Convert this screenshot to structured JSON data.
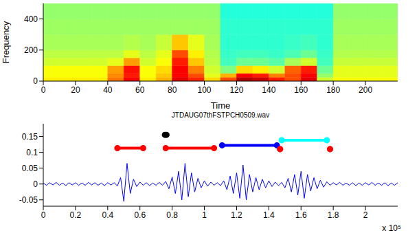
{
  "chart_data": [
    {
      "type": "heatmap",
      "xlabel": "Time",
      "ylabel": "Frequency",
      "xlim": [
        0,
        220
      ],
      "xticks": [
        0,
        20,
        40,
        60,
        80,
        100,
        120,
        140,
        160,
        180,
        200
      ],
      "ylim": [
        0,
        500
      ],
      "yticks": [
        0,
        200,
        400
      ],
      "x_edges": [
        0,
        10,
        20,
        30,
        40,
        50,
        60,
        70,
        80,
        90,
        100,
        110,
        120,
        130,
        140,
        150,
        160,
        170,
        180,
        190,
        200,
        210,
        220
      ],
      "y_edges": [
        0,
        25,
        50,
        100,
        150,
        200,
        300,
        400,
        500
      ],
      "clim": [
        0,
        1
      ],
      "cells": [
        [
          0.64,
          0.64,
          0.64,
          0.64,
          0.76,
          0.88,
          0.64,
          0.7,
          0.9,
          0.84,
          0.66,
          0.8,
          0.95,
          0.93,
          0.85,
          0.8,
          0.9,
          0.58,
          0.62,
          0.62,
          0.62,
          0.62
        ],
        [
          0.62,
          0.62,
          0.62,
          0.62,
          0.74,
          0.85,
          0.62,
          0.68,
          0.88,
          0.8,
          0.6,
          0.7,
          0.88,
          0.85,
          0.75,
          0.8,
          0.88,
          0.52,
          0.6,
          0.6,
          0.6,
          0.6
        ],
        [
          0.62,
          0.62,
          0.62,
          0.62,
          0.72,
          0.86,
          0.62,
          0.66,
          0.88,
          0.75,
          0.58,
          0.5,
          0.66,
          0.64,
          0.58,
          0.78,
          0.85,
          0.48,
          0.6,
          0.6,
          0.6,
          0.6
        ],
        [
          0.58,
          0.58,
          0.58,
          0.58,
          0.6,
          0.72,
          0.58,
          0.62,
          0.85,
          0.68,
          0.56,
          0.44,
          0.48,
          0.48,
          0.46,
          0.54,
          0.58,
          0.44,
          0.57,
          0.57,
          0.57,
          0.57
        ],
        [
          0.56,
          0.56,
          0.56,
          0.56,
          0.56,
          0.6,
          0.56,
          0.6,
          0.8,
          0.64,
          0.55,
          0.43,
          0.44,
          0.44,
          0.43,
          0.45,
          0.48,
          0.43,
          0.55,
          0.55,
          0.55,
          0.55
        ],
        [
          0.54,
          0.54,
          0.54,
          0.54,
          0.54,
          0.55,
          0.54,
          0.57,
          0.68,
          0.6,
          0.54,
          0.42,
          0.42,
          0.42,
          0.42,
          0.43,
          0.44,
          0.42,
          0.54,
          0.54,
          0.54,
          0.54
        ],
        [
          0.53,
          0.53,
          0.53,
          0.53,
          0.53,
          0.53,
          0.53,
          0.53,
          0.53,
          0.53,
          0.53,
          0.42,
          0.42,
          0.42,
          0.42,
          0.42,
          0.42,
          0.42,
          0.53,
          0.53,
          0.53,
          0.53
        ],
        [
          0.52,
          0.52,
          0.52,
          0.52,
          0.52,
          0.52,
          0.52,
          0.52,
          0.52,
          0.52,
          0.52,
          0.41,
          0.41,
          0.41,
          0.41,
          0.41,
          0.41,
          0.41,
          0.52,
          0.52,
          0.52,
          0.52
        ]
      ]
    },
    {
      "type": "line",
      "title": "JTDAUG07thFSTPCH0509.wav",
      "annotation": "x 10⁵",
      "color": "#0000ff",
      "xlim": [
        0,
        2.2
      ],
      "xticks": [
        0,
        0.2,
        0.4,
        0.6,
        0.8,
        1,
        1.2,
        1.4,
        1.6,
        1.8,
        2
      ],
      "ylim": [
        -0.07,
        0.19
      ],
      "yticks": [
        -0.05,
        0,
        0.05,
        0.1,
        0.15
      ],
      "x": [
        0,
        0.02,
        0.04,
        0.06,
        0.08,
        0.1,
        0.12,
        0.14,
        0.16,
        0.18,
        0.2,
        0.22,
        0.24,
        0.26,
        0.28,
        0.3,
        0.32,
        0.34,
        0.36,
        0.38,
        0.4,
        0.42,
        0.44,
        0.46,
        0.48,
        0.5,
        0.52,
        0.54,
        0.56,
        0.58,
        0.6,
        0.62,
        0.64,
        0.66,
        0.68,
        0.7,
        0.72,
        0.74,
        0.76,
        0.78,
        0.8,
        0.82,
        0.84,
        0.86,
        0.88,
        0.9,
        0.92,
        0.94,
        0.96,
        0.98,
        1,
        1.02,
        1.04,
        1.06,
        1.08,
        1.1,
        1.12,
        1.14,
        1.16,
        1.18,
        1.2,
        1.22,
        1.24,
        1.26,
        1.28,
        1.3,
        1.32,
        1.34,
        1.36,
        1.38,
        1.4,
        1.42,
        1.44,
        1.46,
        1.48,
        1.5,
        1.52,
        1.54,
        1.56,
        1.58,
        1.6,
        1.62,
        1.64,
        1.66,
        1.68,
        1.7,
        1.72,
        1.74,
        1.76,
        1.78,
        1.8,
        1.82,
        1.84,
        1.86,
        1.88,
        1.9,
        1.92,
        1.94,
        1.96,
        1.98,
        2,
        2.02,
        2.04,
        2.06,
        2.08,
        2.1,
        2.12,
        2.14,
        2.16,
        2.18,
        2.2
      ],
      "values": [
        0.003,
        -0.004,
        0.004,
        -0.003,
        0.005,
        -0.004,
        0.003,
        -0.005,
        0.004,
        -0.003,
        0.004,
        -0.004,
        0.003,
        -0.004,
        0.005,
        -0.003,
        0.004,
        -0.004,
        0.003,
        -0.005,
        0.004,
        -0.003,
        0.004,
        -0.006,
        0.02,
        -0.055,
        0.065,
        -0.03,
        0.015,
        -0.008,
        0.006,
        -0.004,
        0.004,
        -0.005,
        0.003,
        -0.004,
        0.005,
        -0.004,
        0.008,
        -0.015,
        0.022,
        -0.03,
        0.04,
        -0.05,
        0.065,
        -0.04,
        0.035,
        -0.025,
        0.018,
        -0.012,
        0.01,
        -0.007,
        0.006,
        -0.004,
        0.004,
        -0.005,
        0.01,
        -0.018,
        0.025,
        -0.03,
        0.035,
        -0.045,
        0.06,
        -0.05,
        0.03,
        -0.025,
        0.02,
        -0.018,
        0.015,
        -0.012,
        0.01,
        -0.008,
        0.006,
        -0.005,
        0.005,
        -0.012,
        0.018,
        -0.025,
        0.03,
        -0.035,
        0.04,
        -0.045,
        0.03,
        -0.022,
        0.02,
        -0.015,
        0.012,
        -0.01,
        0.007,
        -0.004,
        0.004,
        -0.003,
        0.005,
        -0.004,
        0.003,
        -0.004,
        0.004,
        -0.005,
        0.003,
        -0.004,
        0.004,
        -0.003,
        0.005,
        -0.004,
        0.003,
        -0.004,
        0.004,
        -0.005,
        0.003,
        -0.004,
        0.004
      ],
      "segments": [
        {
          "color": "#ff0000",
          "x": [
            0.46,
            0.62
          ],
          "y": 0.113
        },
        {
          "color": "#000000",
          "x": [
            0.755,
            0.765
          ],
          "y": 0.155
        },
        {
          "color": "#ff0000",
          "x": [
            0.76,
            1.06
          ],
          "y": 0.113
        },
        {
          "color": "#0000ff",
          "x": [
            1.11,
            1.45
          ],
          "y": 0.122
        },
        {
          "color": "#ff0000",
          "x": [
            1.47,
            1.47
          ],
          "y": 0.11
        },
        {
          "color": "#00ffff",
          "x": [
            1.48,
            1.76
          ],
          "y": 0.138
        },
        {
          "color": "#ff0000",
          "x": [
            1.78,
            1.78
          ],
          "y": 0.11
        }
      ]
    }
  ]
}
